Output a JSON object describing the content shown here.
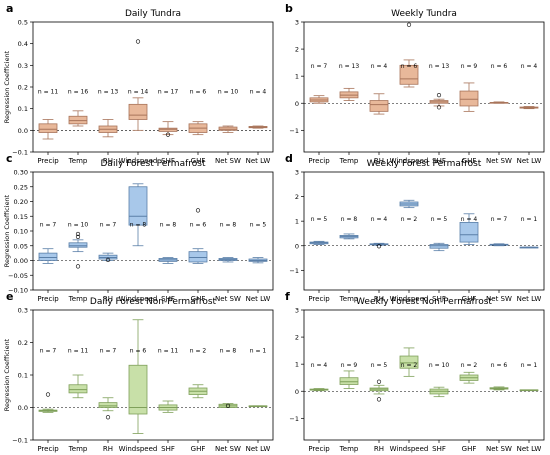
{
  "chart_data": [
    {
      "type": "box",
      "panel_label": "a",
      "title": "Daily Tundra",
      "ylabel": "Regression Coefficient",
      "ylim": [
        -0.1,
        0.5
      ],
      "yticks": [
        -0.1,
        0.0,
        0.1,
        0.2,
        0.3,
        0.4,
        0.5
      ],
      "ytick_labels": [
        "−0.1",
        "0.0",
        "0.1",
        "0.2",
        "0.3",
        "0.4",
        "0.5"
      ],
      "categories": [
        "Precip",
        "Temp",
        "RH",
        "Windspeed",
        "SHF",
        "GHF",
        "Net SW",
        "Net LW"
      ],
      "n_labels": [
        "n = 11",
        "n = 16",
        "n = 13",
        "n = 14",
        "n = 17",
        "n = 6",
        "n = 10",
        "n = 4"
      ],
      "n_label_y": 0.17,
      "color": "#e8b89a",
      "stroke": "#a8745a",
      "boxes": [
        {
          "min": -0.04,
          "q1": -0.01,
          "med": 0.005,
          "q3": 0.03,
          "max": 0.05,
          "fliers": []
        },
        {
          "min": 0.02,
          "q1": 0.03,
          "med": 0.045,
          "q3": 0.065,
          "max": 0.09,
          "fliers": []
        },
        {
          "min": -0.03,
          "q1": -0.01,
          "med": 0.005,
          "q3": 0.02,
          "max": 0.05,
          "fliers": []
        },
        {
          "min": 0.0,
          "q1": 0.05,
          "med": 0.07,
          "q3": 0.12,
          "max": 0.15,
          "fliers": [
            0.41
          ]
        },
        {
          "min": -0.02,
          "q1": -0.005,
          "med": 0.005,
          "q3": 0.01,
          "max": 0.04,
          "fliers": [
            -0.02
          ]
        },
        {
          "min": -0.02,
          "q1": -0.01,
          "med": 0.01,
          "q3": 0.03,
          "max": 0.04,
          "fliers": []
        },
        {
          "min": -0.01,
          "q1": 0.0,
          "med": 0.005,
          "q3": 0.015,
          "max": 0.02,
          "fliers": []
        },
        {
          "min": 0.01,
          "q1": 0.012,
          "med": 0.015,
          "q3": 0.018,
          "max": 0.02,
          "fliers": []
        }
      ]
    },
    {
      "type": "box",
      "panel_label": "b",
      "title": "Weekly Tundra",
      "ylabel": "",
      "ylim": [
        -1.8,
        3.0
      ],
      "yticks": [
        -1,
        0,
        1,
        2,
        3
      ],
      "ytick_labels": [
        "−1",
        "0",
        "1",
        "2",
        "3"
      ],
      "categories": [
        "Precip",
        "Temp",
        "RH",
        "Windspeed",
        "SHF",
        "GHF",
        "Net SW",
        "Net LW"
      ],
      "n_labels": [
        "n = 7",
        "n = 13",
        "n = 4",
        "n = 6",
        "n = 13",
        "n = 9",
        "n = 6",
        "n = 4"
      ],
      "n_label_y": 1.3,
      "color": "#e8b89a",
      "stroke": "#a8745a",
      "boxes": [
        {
          "min": 0.0,
          "q1": 0.05,
          "med": 0.12,
          "q3": 0.2,
          "max": 0.28,
          "fliers": []
        },
        {
          "min": 0.1,
          "q1": 0.2,
          "med": 0.3,
          "q3": 0.42,
          "max": 0.55,
          "fliers": []
        },
        {
          "min": -0.4,
          "q1": -0.3,
          "med": -0.05,
          "q3": 0.1,
          "max": 0.35,
          "fliers": []
        },
        {
          "min": 0.6,
          "q1": 0.7,
          "med": 0.9,
          "q3": 1.4,
          "max": 1.6,
          "fliers": [
            2.9
          ]
        },
        {
          "min": -0.1,
          "q1": 0.0,
          "med": 0.05,
          "q3": 0.1,
          "max": 0.15,
          "fliers": [
            -0.15,
            0.3
          ]
        },
        {
          "min": -0.3,
          "q1": -0.1,
          "med": 0.15,
          "q3": 0.45,
          "max": 0.75,
          "fliers": []
        },
        {
          "min": 0.0,
          "q1": 0.01,
          "med": 0.02,
          "q3": 0.03,
          "max": 0.05,
          "fliers": []
        },
        {
          "min": -0.2,
          "q1": -0.18,
          "med": -0.16,
          "q3": -0.14,
          "max": -0.12,
          "fliers": []
        }
      ]
    },
    {
      "type": "box",
      "panel_label": "c",
      "title": "Daily Forest Permafrost",
      "ylabel": "Regression Coefficient",
      "ylim": [
        -0.1,
        0.3
      ],
      "yticks": [
        -0.1,
        -0.05,
        0.0,
        0.05,
        0.1,
        0.15,
        0.2,
        0.25,
        0.3
      ],
      "ytick_labels": [
        "−0.10",
        "−0.05",
        "0.00",
        "0.05",
        "0.10",
        "0.15",
        "0.20",
        "0.25",
        "0.30"
      ],
      "categories": [
        "Precip",
        "Temp",
        "RH",
        "Windspeed",
        "SHF",
        "GHF",
        "Net SW",
        "Net LW"
      ],
      "n_labels": [
        "n = 7",
        "n = 10",
        "n = 7",
        "n = 8",
        "n = 8",
        "n = 6",
        "n = 8",
        "n = 5"
      ],
      "n_label_y": 0.115,
      "color": "#a8c8ea",
      "stroke": "#5a7fa8",
      "boxes": [
        {
          "min": -0.01,
          "q1": 0.0,
          "med": 0.01,
          "q3": 0.025,
          "max": 0.04,
          "fliers": []
        },
        {
          "min": 0.03,
          "q1": 0.045,
          "med": 0.05,
          "q3": 0.06,
          "max": 0.07,
          "fliers": [
            -0.02,
            0.08,
            0.09
          ]
        },
        {
          "min": 0.0,
          "q1": 0.005,
          "med": 0.01,
          "q3": 0.018,
          "max": 0.025,
          "fliers": [
            0.002
          ]
        },
        {
          "min": 0.05,
          "q1": 0.12,
          "med": 0.15,
          "q3": 0.25,
          "max": 0.26,
          "fliers": []
        },
        {
          "min": -0.01,
          "q1": -0.003,
          "med": 0.002,
          "q3": 0.007,
          "max": 0.01,
          "fliers": []
        },
        {
          "min": -0.01,
          "q1": -0.005,
          "med": 0.01,
          "q3": 0.03,
          "max": 0.04,
          "fliers": [
            0.17
          ]
        },
        {
          "min": -0.005,
          "q1": 0.0,
          "med": 0.003,
          "q3": 0.007,
          "max": 0.01,
          "fliers": []
        },
        {
          "min": -0.008,
          "q1": -0.003,
          "med": 0.0,
          "q3": 0.005,
          "max": 0.01,
          "fliers": []
        }
      ]
    },
    {
      "type": "box",
      "panel_label": "d",
      "title": "Weekly Forest Permafrost",
      "ylabel": "",
      "ylim": [
        -1.8,
        3.0
      ],
      "yticks": [
        -1,
        0,
        1,
        2,
        3
      ],
      "ytick_labels": [
        "−1",
        "0",
        "1",
        "2",
        "3"
      ],
      "categories": [
        "Precip",
        "Temp",
        "RH",
        "Windspeed",
        "SHF",
        "GHF",
        "Net SW",
        "Net LW"
      ],
      "n_labels": [
        "n = 5",
        "n = 8",
        "n = 4",
        "n = 2",
        "n = 5",
        "n = 4",
        "n = 7",
        "n = 1"
      ],
      "n_label_y": 1.0,
      "color": "#a8c8ea",
      "stroke": "#5a7fa8",
      "boxes": [
        {
          "min": 0.05,
          "q1": 0.08,
          "med": 0.12,
          "q3": 0.15,
          "max": 0.18,
          "fliers": []
        },
        {
          "min": 0.28,
          "q1": 0.32,
          "med": 0.38,
          "q3": 0.42,
          "max": 0.48,
          "fliers": []
        },
        {
          "min": 0.02,
          "q1": 0.04,
          "med": 0.06,
          "q3": 0.08,
          "max": 0.1,
          "fliers": [
            -0.02
          ]
        },
        {
          "min": 1.55,
          "q1": 1.62,
          "med": 1.7,
          "q3": 1.78,
          "max": 1.85,
          "fliers": []
        },
        {
          "min": -0.2,
          "q1": -0.1,
          "med": 0.0,
          "q3": 0.05,
          "max": 0.1,
          "fliers": []
        },
        {
          "min": 0.05,
          "q1": 0.15,
          "med": 0.45,
          "q3": 0.95,
          "max": 1.3,
          "fliers": []
        },
        {
          "min": 0.0,
          "q1": 0.02,
          "med": 0.04,
          "q3": 0.06,
          "max": 0.08,
          "fliers": []
        },
        {
          "min": -0.06,
          "q1": -0.06,
          "med": -0.06,
          "q3": -0.06,
          "max": -0.06,
          "fliers": []
        }
      ]
    },
    {
      "type": "box",
      "panel_label": "e",
      "title": "Daily Forest Non-Permafrost",
      "ylabel": "Regression Coefficient",
      "ylim": [
        -0.1,
        0.3
      ],
      "yticks": [
        -0.1,
        0.0,
        0.1,
        0.2,
        0.3
      ],
      "ytick_labels": [
        "−0.1",
        "0.0",
        "0.1",
        "0.2",
        "0.3"
      ],
      "categories": [
        "Precip",
        "Temp",
        "RH",
        "Windspeed",
        "SHF",
        "GHF",
        "Net SW",
        "Net LW"
      ],
      "n_labels": [
        "n = 7",
        "n = 11",
        "n = 7",
        "n = 6",
        "n = 11",
        "n = 2",
        "n = 8",
        "n = 1"
      ],
      "n_label_y": 0.17,
      "color": "#c8e0a8",
      "stroke": "#7fa05a",
      "boxes": [
        {
          "min": -0.015,
          "q1": -0.012,
          "med": -0.01,
          "q3": -0.008,
          "max": -0.005,
          "fliers": [
            0.04
          ]
        },
        {
          "min": 0.03,
          "q1": 0.045,
          "med": 0.055,
          "q3": 0.07,
          "max": 0.1,
          "fliers": []
        },
        {
          "min": -0.01,
          "q1": 0.0,
          "med": 0.005,
          "q3": 0.015,
          "max": 0.03,
          "fliers": [
            -0.03
          ]
        },
        {
          "min": -0.08,
          "q1": -0.02,
          "med": 0.0,
          "q3": 0.13,
          "max": 0.27,
          "fliers": []
        },
        {
          "min": -0.015,
          "q1": -0.008,
          "med": 0.0,
          "q3": 0.008,
          "max": 0.02,
          "fliers": []
        },
        {
          "min": 0.03,
          "q1": 0.04,
          "med": 0.05,
          "q3": 0.06,
          "max": 0.07,
          "fliers": []
        },
        {
          "min": 0.0,
          "q1": 0.0,
          "med": 0.005,
          "q3": 0.01,
          "max": 0.012,
          "fliers": [
            0.005
          ]
        },
        {
          "min": 0.005,
          "q1": 0.005,
          "med": 0.005,
          "q3": 0.005,
          "max": 0.005,
          "fliers": []
        }
      ]
    },
    {
      "type": "box",
      "panel_label": "f",
      "title": "Weekly Forest Non-Permafrost",
      "ylabel": "",
      "ylim": [
        -1.8,
        3.0
      ],
      "yticks": [
        -1,
        0,
        1,
        2,
        3
      ],
      "ytick_labels": [
        "−1",
        "0",
        "1",
        "2",
        "3"
      ],
      "categories": [
        "Precip",
        "Temp",
        "RH",
        "Windspeed",
        "SHF",
        "GHF",
        "Net SW",
        "Net LW"
      ],
      "n_labels": [
        "n = 4",
        "n = 9",
        "n = 5",
        "n = 2",
        "n = 10",
        "n = 2",
        "n = 6",
        "n = 1"
      ],
      "n_label_y": 0.9,
      "color": "#c8e0a8",
      "stroke": "#7fa05a",
      "boxes": [
        {
          "min": 0.02,
          "q1": 0.04,
          "med": 0.06,
          "q3": 0.08,
          "max": 0.1,
          "fliers": []
        },
        {
          "min": 0.1,
          "q1": 0.25,
          "med": 0.35,
          "q3": 0.5,
          "max": 0.75,
          "fliers": []
        },
        {
          "min": -0.1,
          "q1": 0.02,
          "med": 0.08,
          "q3": 0.12,
          "max": 0.22,
          "fliers": [
            -0.3,
            0.35
          ]
        },
        {
          "min": 0.55,
          "q1": 0.85,
          "med": 1.05,
          "q3": 1.3,
          "max": 1.6,
          "fliers": []
        },
        {
          "min": -0.2,
          "q1": -0.1,
          "med": 0.0,
          "q3": 0.08,
          "max": 0.15,
          "fliers": []
        },
        {
          "min": 0.3,
          "q1": 0.4,
          "med": 0.5,
          "q3": 0.6,
          "max": 0.7,
          "fliers": []
        },
        {
          "min": 0.05,
          "q1": 0.08,
          "med": 0.1,
          "q3": 0.13,
          "max": 0.16,
          "fliers": []
        },
        {
          "min": 0.05,
          "q1": 0.05,
          "med": 0.05,
          "q3": 0.05,
          "max": 0.05,
          "fliers": []
        }
      ]
    }
  ]
}
